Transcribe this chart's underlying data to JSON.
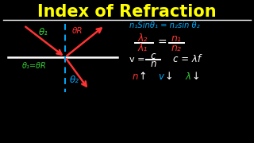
{
  "background_color": "#000000",
  "title": "Index of Refraction",
  "title_color": "#FFFF00",
  "title_fontsize": 15,
  "snells_law": "n₁Sinθ₁ = n₂sin θ₂",
  "snells_color": "#00AAFF",
  "lambda_num": "λ₂",
  "lambda_den": "λ₁",
  "lambda_color": "#FF3333",
  "n_num": "n₁",
  "n_den": "n₂",
  "n_ratio_color": "#FF3333",
  "c_eq": "c = λf",
  "bottom_n_color": "#FF3333",
  "bottom_v_color": "#00AAFF",
  "bottom_lambda_color": "#33CC33",
  "theta1_color": "#33CC33",
  "thetaR_color": "#FF3333",
  "theta2_color": "#00AAFF",
  "bottom_eq_color": "#33CC33",
  "normal_color": "#00AAFF",
  "arrow_color": "#FF3333",
  "white": "#FFFFFF"
}
